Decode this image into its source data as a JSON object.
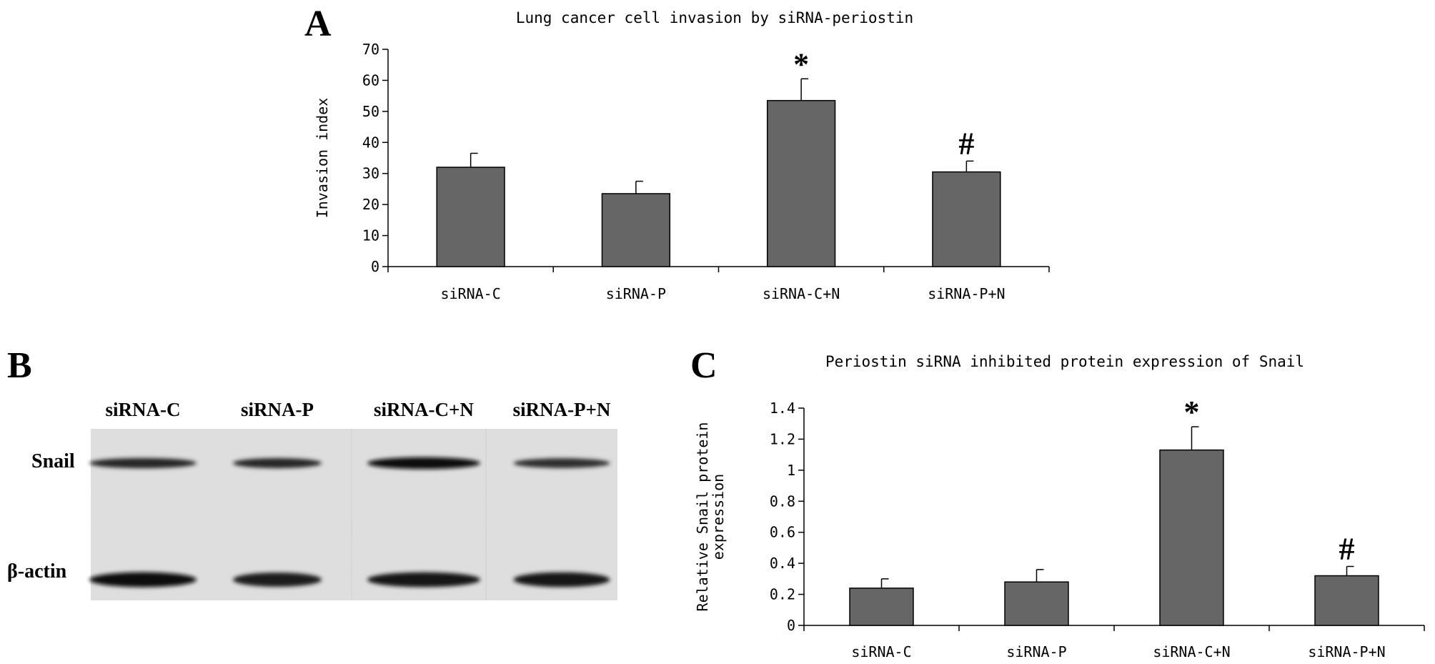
{
  "panels": {
    "a": {
      "letter": "A"
    },
    "b": {
      "letter": "B",
      "lanes": [
        "siRNA-C",
        "siRNA-P",
        "siRNA-C+N",
        "siRNA-P+N"
      ],
      "rows": [
        "Snail",
        "β-actin"
      ],
      "band_intensity": {
        "Snail": [
          0.65,
          0.62,
          0.95,
          0.55
        ],
        "β-actin": [
          0.92,
          0.8,
          0.9,
          0.88
        ]
      }
    },
    "c": {
      "letter": "C"
    }
  },
  "chart_data": [
    {
      "type": "bar",
      "title": "Lung cancer cell invasion by siRNA-periostin",
      "ylabel": "Invasion index",
      "xlabel": "",
      "categories": [
        "siRNA-C",
        "siRNA-P",
        "siRNA-C+N",
        "siRNA-P+N"
      ],
      "values": [
        32,
        23.5,
        53.5,
        30.5
      ],
      "errors": [
        4.5,
        4,
        7,
        3.5
      ],
      "annotations": [
        "",
        "",
        "*",
        "#"
      ],
      "ylim": [
        0,
        70
      ],
      "yticks": [
        "0",
        "10",
        "20",
        "30",
        "40",
        "50",
        "60",
        "70"
      ],
      "bar_color": "#666666",
      "grid": false
    },
    {
      "type": "bar",
      "title": "Periostin siRNA inhibited protein expression of Snail",
      "ylabel": "Relative Snail protein expression",
      "xlabel": "",
      "categories": [
        "siRNA-C",
        "siRNA-P",
        "siRNA-C+N",
        "siRNA-P+N"
      ],
      "values": [
        0.24,
        0.28,
        1.13,
        0.32
      ],
      "errors": [
        0.06,
        0.08,
        0.15,
        0.06
      ],
      "annotations": [
        "",
        "",
        "*",
        "#"
      ],
      "ylim": [
        0,
        1.4
      ],
      "yticks": [
        "0",
        "0.2",
        "0.4",
        "0.6",
        "0.8",
        "1",
        "1.2",
        "1.4"
      ],
      "bar_color": "#666666",
      "grid": false
    }
  ]
}
